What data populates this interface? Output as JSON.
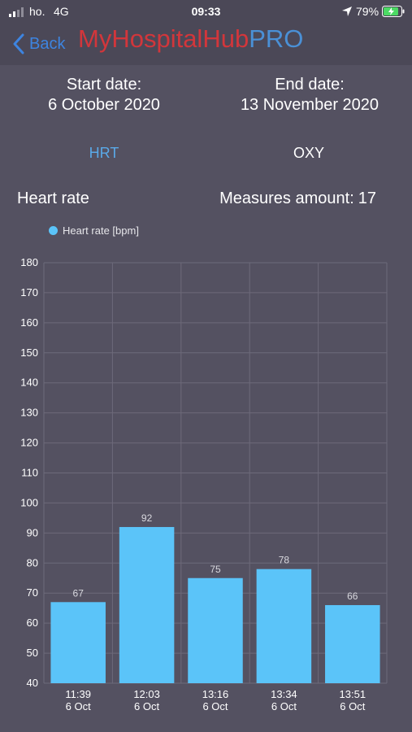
{
  "status_bar": {
    "carrier": "ho.",
    "network": "4G",
    "time": "09:33",
    "battery_percent": "79%"
  },
  "nav": {
    "back_label": "Back",
    "brand_main": "MyHospitalHub",
    "brand_suffix": "PRO"
  },
  "dates": {
    "start_label": "Start date:",
    "start_value": "6 October 2020",
    "end_label": "End date:",
    "end_value": "13 November 2020"
  },
  "tabs": [
    {
      "label": "HRT",
      "active": true
    },
    {
      "label": "OXY",
      "active": false
    }
  ],
  "section_title": "Heart rate",
  "measures": {
    "label": "Measures amount:",
    "value": "17"
  },
  "colors": {
    "background": "#545161",
    "bar": "#5bc4f9",
    "brand_red": "#d2363b",
    "brand_blue": "#4a90d6",
    "active_tab": "#5aa9e8"
  },
  "chart_data": {
    "type": "bar",
    "legend": [
      "Heart rate [bpm]"
    ],
    "legend_position": "top-left",
    "grid": true,
    "ylim": [
      40,
      180
    ],
    "yticks": [
      40,
      50,
      60,
      70,
      80,
      90,
      100,
      110,
      120,
      130,
      140,
      150,
      160,
      170,
      180
    ],
    "categories": [
      {
        "time": "11:39",
        "date": "6 Oct"
      },
      {
        "time": "12:03",
        "date": "6 Oct"
      },
      {
        "time": "13:16",
        "date": "6 Oct"
      },
      {
        "time": "13:34",
        "date": "6 Oct"
      },
      {
        "time": "13:51",
        "date": "6 Oct"
      }
    ],
    "series": [
      {
        "name": "Heart rate [bpm]",
        "values": [
          67,
          92,
          75,
          78,
          66
        ]
      }
    ]
  }
}
